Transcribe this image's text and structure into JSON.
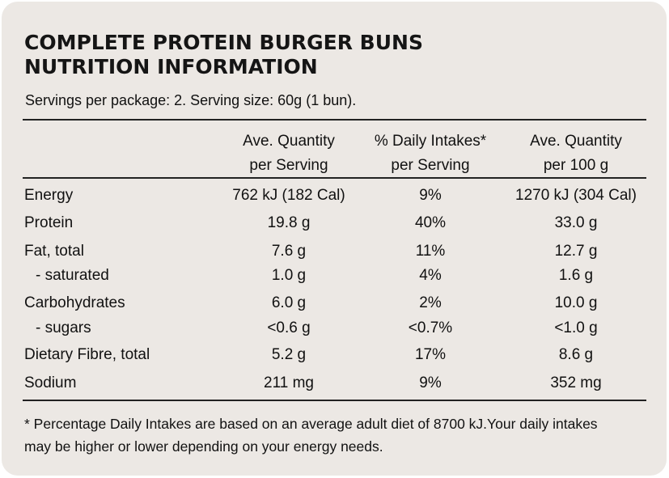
{
  "title_line1": "COMPLETE PROTEIN BURGER BUNS",
  "title_line2": "NUTRITION INFORMATION",
  "servings": "Servings per package: 2.  Serving size: 60g (1 bun).",
  "headers": {
    "col1_line1": "Ave. Quantity",
    "col1_line2": "per Serving",
    "col2_line1": "% Daily Intakes*",
    "col2_line2": "per Serving",
    "col3_line1": "Ave. Quantity",
    "col3_line2": "per 100 g"
  },
  "rows": [
    {
      "label": "Energy",
      "per_serving": "762 kJ (182 Cal)",
      "daily_intake": "9%",
      "per_100g": "1270 kJ (304 Cal)"
    },
    {
      "label": "Protein",
      "per_serving": "19.8 g",
      "daily_intake": "40%",
      "per_100g": "33.0 g"
    },
    {
      "label": "Fat, total",
      "per_serving": "7.6 g",
      "daily_intake": "11%",
      "per_100g": "12.7 g"
    },
    {
      "label": "- saturated",
      "per_serving": "1.0 g",
      "daily_intake": "4%",
      "per_100g": "1.6 g"
    },
    {
      "label": "Carbohydrates",
      "per_serving": "6.0 g",
      "daily_intake": "2%",
      "per_100g": "10.0 g"
    },
    {
      "label": "- sugars",
      "per_serving": "<0.6 g",
      "daily_intake": "<0.7%",
      "per_100g": "<1.0 g"
    },
    {
      "label": "Dietary Fibre, total",
      "per_serving": "5.2 g",
      "daily_intake": "17%",
      "per_100g": "8.6 g"
    },
    {
      "label": "Sodium",
      "per_serving": "211 mg",
      "daily_intake": "9%",
      "per_100g": "352 mg"
    }
  ],
  "footnote_line1": "* Percentage Daily Intakes are based on an average adult diet of 8700 kJ.Your daily intakes",
  "footnote_line2": "may be higher or lower depending on your energy needs.",
  "colors": {
    "background": "#ece8e4",
    "text": "#111111",
    "rule": "#222222"
  }
}
